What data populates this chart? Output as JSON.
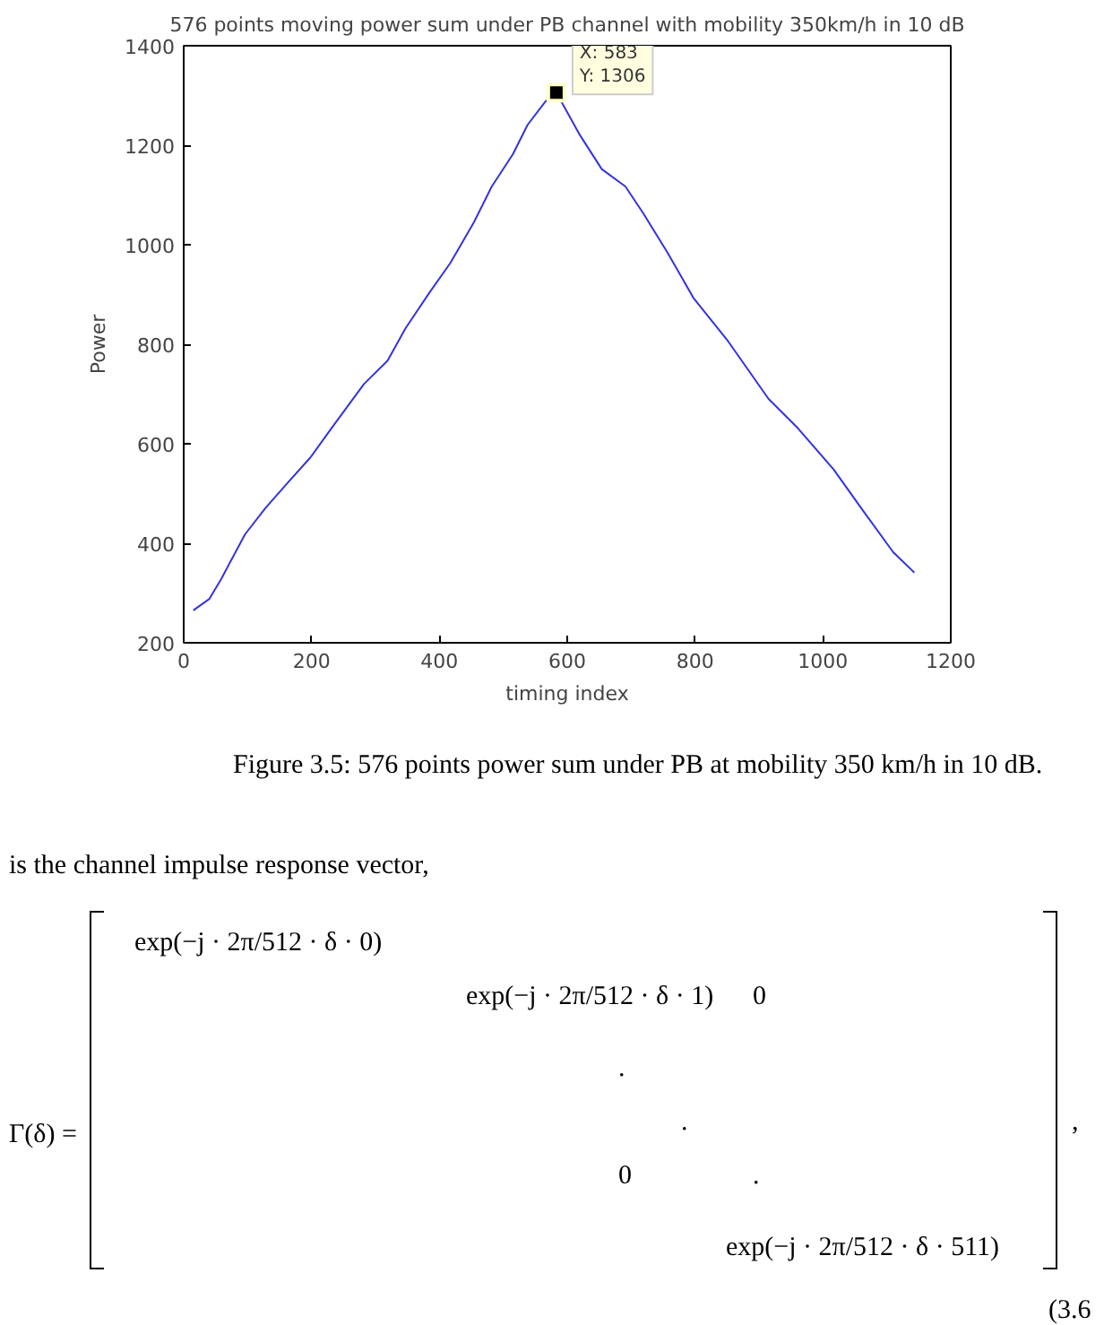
{
  "chart_data": {
    "type": "line",
    "title": "576 points moving power sum under PB channel with mobility 350km/h in 10 dB",
    "xlabel": "timing index",
    "ylabel": "Power",
    "x": [
      15,
      40,
      59,
      96,
      128,
      161,
      198,
      231,
      282,
      319,
      347,
      384,
      417,
      454,
      482,
      515,
      538,
      566,
      583,
      620,
      654,
      691,
      719,
      756,
      798,
      850,
      915,
      961,
      1017,
      1063,
      1110,
      1143
    ],
    "series": [
      {
        "color": "#3333dd",
        "values": [
          265,
          288,
          329,
          418,
          471,
          519,
          572,
          631,
          720,
          767,
          832,
          903,
          963,
          1045,
          1117,
          1182,
          1241,
          1288,
          1306,
          1220,
          1152,
          1117,
          1063,
          986,
          892,
          809,
          690,
          631,
          548,
          465,
          382,
          341
        ]
      }
    ],
    "xlim": [
      0,
      1200
    ],
    "ylim": [
      200,
      1400
    ],
    "xticks": [
      0,
      200,
      400,
      600,
      800,
      1000,
      1200
    ],
    "yticks": [
      200,
      400,
      600,
      800,
      1000,
      1200,
      1400
    ],
    "grid": false,
    "marker": "none",
    "line_style": "solid",
    "annotations": [
      {
        "text": "X: 583\nY: 1306",
        "x": 583,
        "y": 1306
      },
      "Figure 3.5: 576 points power sum under PB at mobility 350 km/h in 10 dB.",
      "is the channel impulse response vector,",
      "Γ(δ) =",
      "exp(−j · 2π/512 · δ · 0)",
      "exp(−j · 2π/512 · δ · 1)",
      "0",
      ".",
      ".",
      "0",
      ".",
      "exp(−j · 2π/512 · δ · 511)",
      ",",
      "(3.6"
    ]
  }
}
